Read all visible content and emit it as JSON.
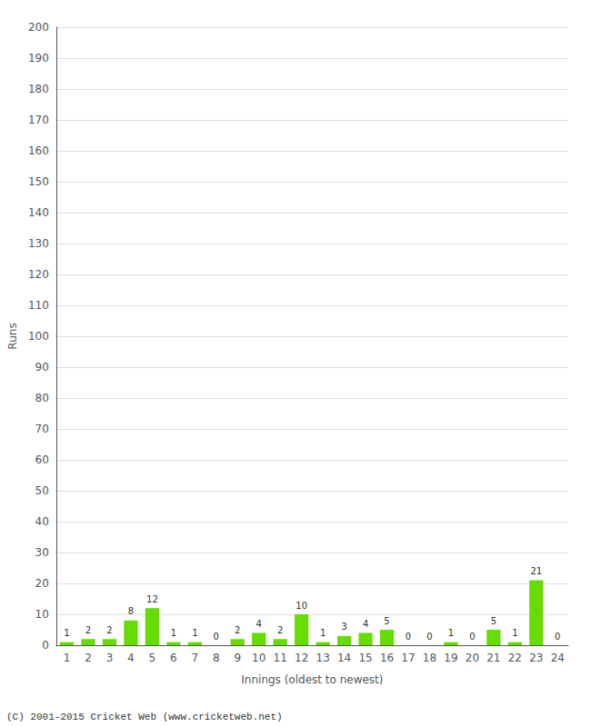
{
  "chart_data": {
    "type": "bar",
    "categories": [
      "1",
      "2",
      "3",
      "4",
      "5",
      "6",
      "7",
      "8",
      "9",
      "10",
      "11",
      "12",
      "13",
      "14",
      "15",
      "16",
      "17",
      "18",
      "19",
      "20",
      "21",
      "22",
      "23",
      "24"
    ],
    "values": [
      1,
      2,
      2,
      8,
      12,
      1,
      1,
      0,
      2,
      4,
      2,
      10,
      1,
      3,
      4,
      5,
      0,
      0,
      1,
      0,
      5,
      1,
      21,
      0
    ],
    "color": "#66dd00",
    "xlabel": "Innings (oldest to newest)",
    "ylabel": "Runs",
    "ylim": [
      0,
      200
    ],
    "yticks": [
      0,
      10,
      20,
      30,
      40,
      50,
      60,
      70,
      80,
      90,
      100,
      110,
      120,
      130,
      140,
      150,
      160,
      170,
      180,
      190,
      200
    ],
    "grid": true,
    "data_labels": true,
    "annotations": [
      "(C) 2001-2015 Cricket Web (www.cricketweb.net)"
    ]
  }
}
